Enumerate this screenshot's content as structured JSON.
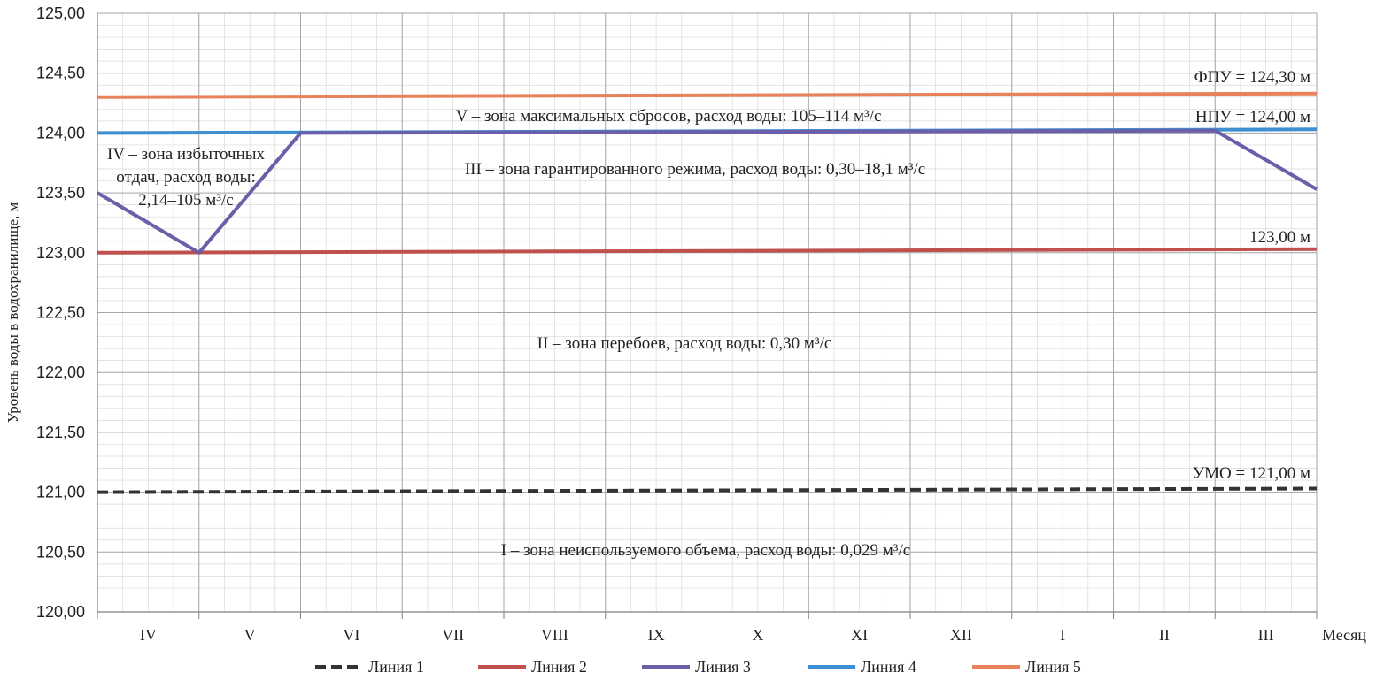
{
  "chart_data": {
    "type": "line",
    "title": "",
    "ylabel": "Уровень воды в водохранилище, м",
    "xlabel": "Месяц",
    "ylim": [
      120.0,
      125.0
    ],
    "xlim": [
      0,
      12
    ],
    "y_ticks": [
      "120,00",
      "120,50",
      "121,00",
      "121,50",
      "122,00",
      "122,50",
      "123,00",
      "123,50",
      "124,00",
      "124,50",
      "125,00"
    ],
    "categories": [
      "IV",
      "V",
      "VI",
      "VII",
      "VIII",
      "IX",
      "X",
      "XI",
      "XII",
      "I",
      "II",
      "III"
    ],
    "grid": true,
    "legend_position": "bottom",
    "series": [
      {
        "name": "Линия 1",
        "color": "#333333",
        "dash": true,
        "points": [
          [
            0,
            121.0
          ],
          [
            12,
            121.03
          ]
        ]
      },
      {
        "name": "Линия 2",
        "color": "#c0504d",
        "dash": false,
        "points": [
          [
            0,
            123.0
          ],
          [
            12,
            123.03
          ]
        ]
      },
      {
        "name": "Линия 3",
        "color": "#6a5fa8",
        "dash": false,
        "points": [
          [
            0,
            123.5
          ],
          [
            1,
            123.0
          ],
          [
            2,
            124.0
          ],
          [
            11,
            124.02
          ],
          [
            12,
            123.53
          ]
        ]
      },
      {
        "name": "Линия 4",
        "color": "#3d8fd1",
        "dash": false,
        "points": [
          [
            0,
            124.0
          ],
          [
            12,
            124.03
          ]
        ]
      },
      {
        "name": "Линия 5",
        "color": "#e8825a",
        "dash": false,
        "points": [
          [
            0,
            124.3
          ],
          [
            12,
            124.33
          ]
        ]
      }
    ],
    "annotations": [
      {
        "id": "fpu",
        "text": "ФПУ = 124,30 м"
      },
      {
        "id": "npu",
        "text": "НПУ = 124,00 м"
      },
      {
        "id": "level-123",
        "text": "123,00 м"
      },
      {
        "id": "umo",
        "text": "УМО = 121,00 м"
      },
      {
        "id": "zone-v",
        "text": "V – зона максимальных сбросов, расход воды: 105–114 м³/с"
      },
      {
        "id": "zone-iii",
        "text": "III – зона гарантированного режима, расход воды: 0,30–18,1 м³/с"
      },
      {
        "id": "zone-ii",
        "text": "II – зона перебоев, расход воды: 0,30 м³/с"
      },
      {
        "id": "zone-i",
        "text": "I – зона неиспользуемого объема, расход воды: 0,029 м³/с"
      },
      {
        "id": "zone-iv-1",
        "text": "IV – зона избыточных"
      },
      {
        "id": "zone-iv-2",
        "text": "отдач, расход воды:"
      },
      {
        "id": "zone-iv-3",
        "text": "2,14–105 м³/с"
      }
    ]
  }
}
